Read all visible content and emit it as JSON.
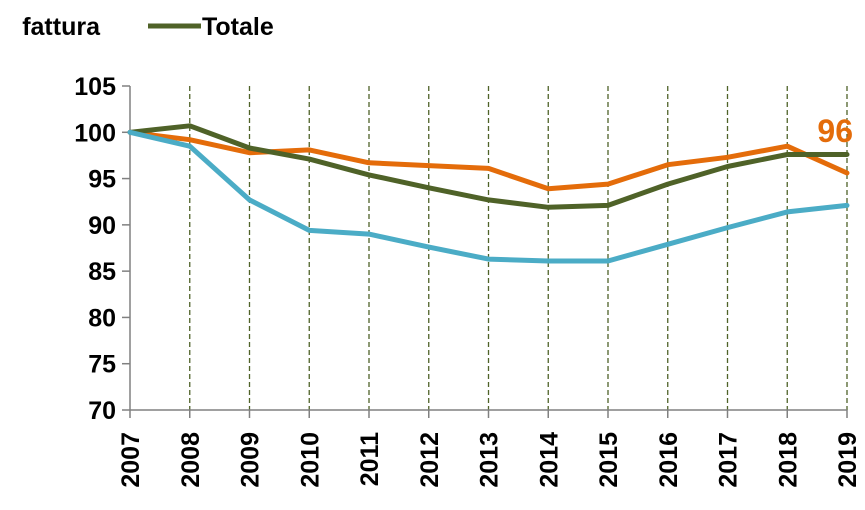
{
  "chart_data": {
    "type": "line",
    "title": "",
    "xlabel": "",
    "ylabel": "",
    "x": [
      "2007",
      "2008",
      "2009",
      "2010",
      "2011",
      "2012",
      "2013",
      "2014",
      "2015",
      "2016",
      "2017",
      "2018",
      "2019"
    ],
    "ylim": [
      70,
      105
    ],
    "yticks": [
      70,
      75,
      80,
      85,
      90,
      95,
      100,
      105
    ],
    "grid": "vertical dashed gridlines",
    "legend_placement": "top-left",
    "legend": [
      {
        "label": "fattura",
        "color": "#E46C0A"
      },
      {
        "label": "Totale",
        "color": "#4F6228"
      }
    ],
    "series": [
      {
        "name": "fattura",
        "color": "#E46C0A",
        "values": [
          100,
          99.2,
          97.8,
          98.1,
          96.7,
          96.4,
          96.1,
          93.9,
          94.4,
          96.5,
          97.3,
          98.5,
          95.6
        ]
      },
      {
        "name": "Totale",
        "color": "#4F6228",
        "values": [
          100,
          100.7,
          98.3,
          97.1,
          95.4,
          94.0,
          92.7,
          91.9,
          92.1,
          94.4,
          96.3,
          97.6,
          97.6
        ]
      },
      {
        "color": "#4BACC6",
        "values": [
          100,
          98.5,
          92.7,
          89.4,
          89.0,
          87.6,
          86.3,
          86.1,
          86.1,
          87.9,
          89.7,
          91.4,
          92.1
        ]
      }
    ],
    "annotations": [
      {
        "text": "96",
        "series": "fattura",
        "x": "2019",
        "color": "#E46C0A"
      }
    ]
  }
}
